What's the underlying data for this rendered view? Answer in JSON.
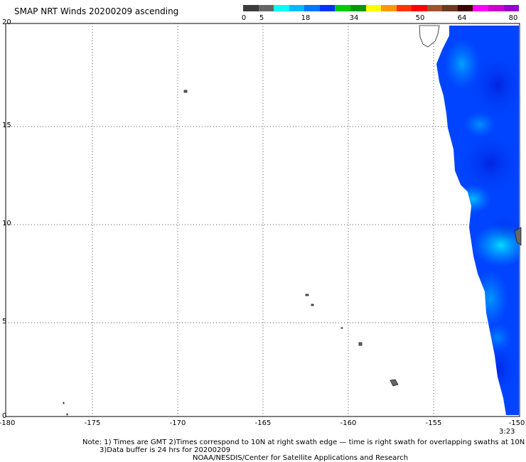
{
  "title": "SMAP NRT Winds 20200209 ascending",
  "colorbar": {
    "labels": [
      "0",
      "5",
      "18",
      "34",
      "50",
      "64",
      "80"
    ],
    "colors": [
      "#3c3c3c",
      "#666666",
      "#00ffff",
      "#00bbff",
      "#0077ff",
      "#0033ff",
      "#00cc00",
      "#009900",
      "#ffff00",
      "#ff9900",
      "#ff3300",
      "#ff0000",
      "#a0522d",
      "#6b3a20",
      "#400000",
      "#ff00ff",
      "#cc00cc",
      "#9900cc"
    ]
  },
  "axes": {
    "lat_ticks": [
      "20",
      "15",
      "10",
      "5",
      "0"
    ],
    "lon_ticks": [
      "-180",
      "-175",
      "-170",
      "-165",
      "-160",
      "-155",
      "-150"
    ]
  },
  "time_label": "3:23",
  "notes": {
    "line1": "Note: 1) Times are GMT 2)Times correspond to 10N at right swath edge — time is right swath for overlapping swaths at 10N",
    "line2": "3)Data buffer is 24 hrs for 20200209",
    "line3": "NOAA/NESDIS/Center for Satellite Applications and Research"
  }
}
